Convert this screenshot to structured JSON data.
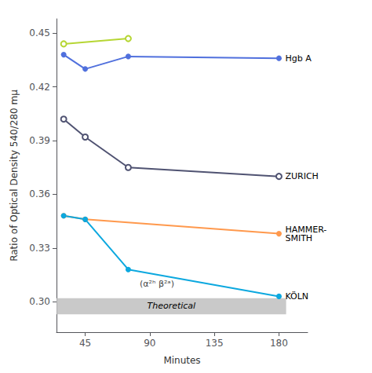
{
  "chart_data": {
    "type": "line",
    "x_label": "Minutes",
    "y_label": "Ratio of Optical Density 540/280 mμ",
    "xlim": [
      25,
      200
    ],
    "xticks": [
      45,
      90,
      135,
      180
    ],
    "ylim": [
      0.283,
      0.458
    ],
    "yticks": [
      {
        "value": 0.3,
        "label": "0.30"
      },
      0.33,
      0.36,
      0.39,
      0.42,
      0.45
    ],
    "grid": false,
    "series": [
      {
        "label": "Hgb A",
        "x": [
          30,
          45,
          75,
          180
        ],
        "values": [
          0.438,
          0.43,
          0.437,
          0.436
        ],
        "marker": "filled"
      },
      {
        "x": [
          30,
          75
        ],
        "values": [
          0.444,
          0.447
        ],
        "marker": "open"
      },
      {
        "label": "ZURICH",
        "x": [
          30,
          45,
          75,
          180
        ],
        "values": [
          0.402,
          0.392,
          0.375,
          0.37
        ],
        "marker": "open"
      },
      {
        "label": "HAMMER-\nSMITH",
        "x": [
          30,
          45,
          180
        ],
        "values": [
          0.348,
          0.346,
          0.338
        ],
        "marker": "filled"
      },
      {
        "label": "KÖLN",
        "x": [
          30,
          45,
          75,
          180
        ],
        "values": [
          0.348,
          0.346,
          0.318,
          0.303
        ],
        "marker": "filled"
      }
    ],
    "band": {
      "label": "Theoretical",
      "xlim": [
        25,
        185
      ],
      "ylim": [
        0.293,
        0.302
      ],
      "color": "#c0c0c0"
    },
    "annotations": [
      {
        "text": "(α²ʰ β²ᵃ)",
        "x": 95,
        "y": 0.307
      }
    ]
  }
}
